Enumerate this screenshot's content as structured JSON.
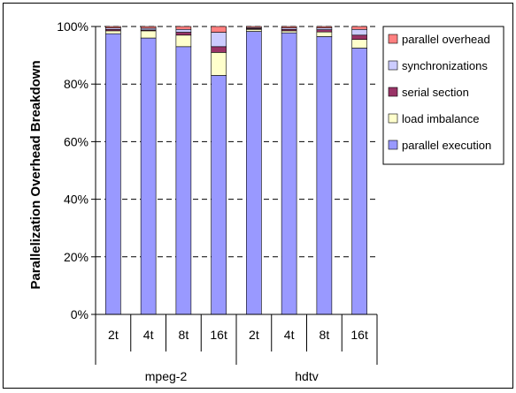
{
  "chart_data": {
    "type": "bar",
    "stacked": true,
    "percent_stacked": true,
    "title": "",
    "ylabel": "Parallelization Overhead Breakdown",
    "xlabel": "",
    "ylim": [
      0,
      100
    ],
    "yticks": [
      "0%",
      "20%",
      "40%",
      "60%",
      "80%",
      "100%"
    ],
    "grid": "horizontal dashed",
    "legend_position": "top-right",
    "groups": [
      {
        "label": "mpeg-2",
        "categories": [
          "2t",
          "4t",
          "8t",
          "16t"
        ]
      },
      {
        "label": "hdtv",
        "categories": [
          "2t",
          "4t",
          "8t",
          "16t"
        ]
      }
    ],
    "series": [
      {
        "name": "parallel execution",
        "color": "#9999ff",
        "values": [
          97.5,
          96,
          93,
          83,
          98.3,
          97.8,
          96.5,
          92.5
        ]
      },
      {
        "name": "load imbalance",
        "color": "#ffffcc",
        "values": [
          1.0,
          2.5,
          4.0,
          8.0,
          0.7,
          0.7,
          1.6,
          3.0
        ]
      },
      {
        "name": "serial section",
        "color": "#993366",
        "values": [
          0.5,
          0.3,
          1.0,
          2.0,
          0.3,
          0.5,
          0.8,
          1.5
        ]
      },
      {
        "name": "synchronizations",
        "color": "#ccccff",
        "values": [
          0.5,
          0.6,
          1.0,
          5.0,
          0.3,
          0.5,
          0.6,
          2.0
        ]
      },
      {
        "name": "parallel overhead",
        "color": "#ff8080",
        "values": [
          0.5,
          0.6,
          1.0,
          2.0,
          0.4,
          0.5,
          0.5,
          1.0
        ]
      }
    ]
  }
}
